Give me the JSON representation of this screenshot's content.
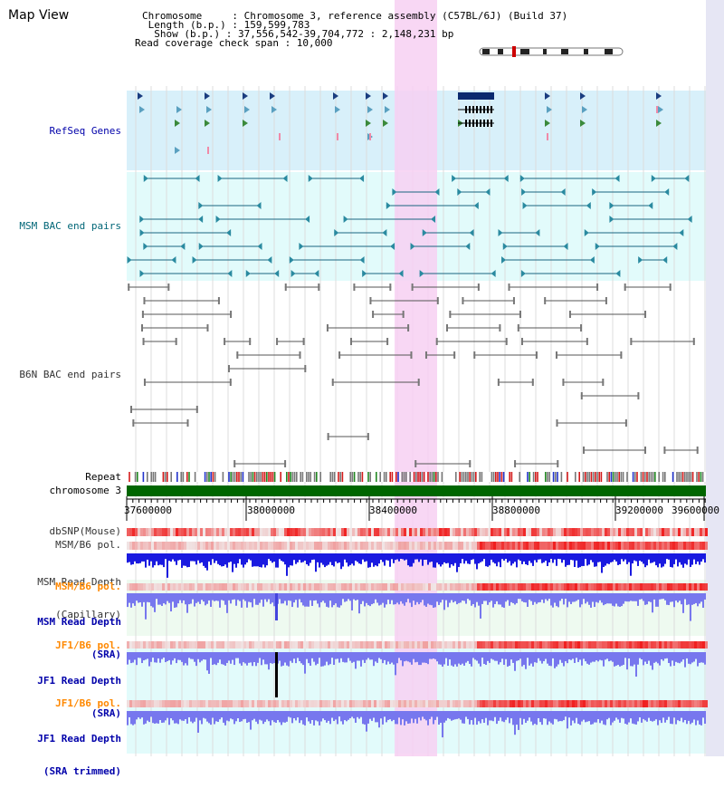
{
  "title": "Map View",
  "info": {
    "chromosome": "Chromosome     : Chromosome 3, reference assembly (C57BL/6J) (Build 37)",
    "length": " Length (b.p.) : 159,599,783",
    "show": "  Show (b.p.) : 37,556,542-39,704,772 : 2,148,231 bp",
    "coverage": "Read coverage check span : 10,000"
  },
  "tracks": {
    "refseq": "RefSeq Genes",
    "msm_bac": "MSM BAC end pairs",
    "b6n_bac": "B6N BAC end pairs",
    "repeat": "Repeat",
    "chromosome": "chromosome 3",
    "dbsnp": "dbSNP(Mouse)",
    "msm_b6_pol": "MSM/B6 pol.",
    "msm_depth_cap_1": "MSM Read Depth",
    "msm_depth_cap_2": "(Capillary)",
    "msm_b6_pol_sra": "MSM/B6 pol.",
    "msm_depth_sra_1": "MSM Read Depth",
    "msm_depth_sra_2": "(SRA)",
    "jf1_b6_pol": "JF1/B6 pol.",
    "jf1_depth_1": "JF1 Read Depth",
    "jf1_depth_2": "(SRA)",
    "jf1_b6_pol_trim": "JF1/B6 pol.",
    "jf1_depth_trim_1": "JF1 Read Depth",
    "jf1_depth_trim_2": "(SRA trimmed)"
  },
  "axis": {
    "ticks": [
      "37600000",
      "38000000",
      "38400000",
      "38800000",
      "39200000",
      "39600000"
    ]
  },
  "colors": {
    "refseq_bg": "#d8f0fa",
    "msm_bg": "#e2fbfb",
    "highlight": "#f7d0f2",
    "chrom_bar": "#006600",
    "label_blue": "#0000aa",
    "label_orange": "#ff8800",
    "depth_dark": "#1a1ae0",
    "depth_light": "#7777ee"
  }
}
